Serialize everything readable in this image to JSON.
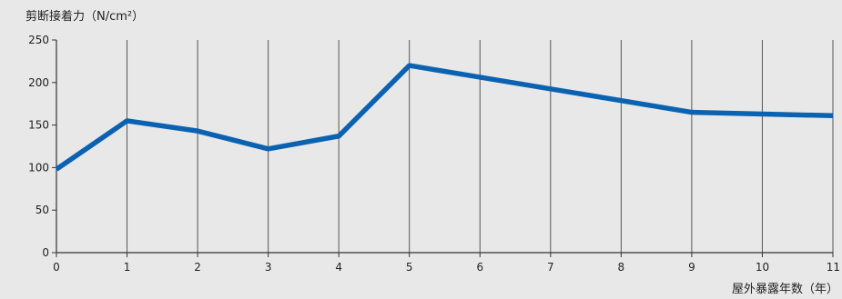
{
  "chart_data": {
    "type": "line",
    "ylabel": "剪断接着力（N/cm²）",
    "xlabel": "屋外暴露年数（年）",
    "x": [
      0,
      1,
      2,
      3,
      4,
      5,
      6,
      7,
      8,
      9,
      10,
      11
    ],
    "x_tick_labels": [
      "0",
      "1",
      "2",
      "3",
      "4",
      "5",
      "6",
      "7",
      "8",
      "9",
      "10",
      "11"
    ],
    "y_tick_labels": [
      "0",
      "50",
      "100",
      "150",
      "200",
      "250"
    ],
    "y_ticks": [
      0,
      50,
      100,
      150,
      200,
      250
    ],
    "xlim": [
      0,
      11
    ],
    "ylim": [
      0,
      250
    ],
    "series": [
      {
        "x": [
          0,
          1,
          2,
          3,
          4,
          5,
          9,
          11
        ],
        "values": [
          98,
          155,
          143,
          122,
          137,
          220,
          165,
          161
        ]
      }
    ],
    "grid": "vertical",
    "line_color": "#0b62b1",
    "axis_color": "#333333",
    "background": "#e8e8e8"
  }
}
